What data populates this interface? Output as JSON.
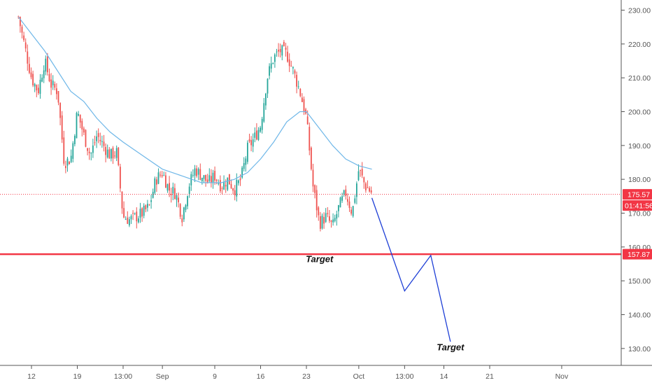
{
  "chart_data": {
    "type": "candlestick",
    "title": "",
    "ylim": [
      125,
      233
    ],
    "y_ticks": [
      "130.00",
      "140.00",
      "150.00",
      "160.00",
      "170.00",
      "180.00",
      "190.00",
      "200.00",
      "210.00",
      "220.00",
      "230.00"
    ],
    "x_ticks": [
      "12",
      "19",
      "13:00",
      "Sep",
      "9",
      "16",
      "23",
      "Oct",
      "13:00",
      "14",
      "21",
      "Nov"
    ],
    "colors": {
      "up": "#26a69a",
      "down": "#ef5350",
      "ma": "#6fb7e8",
      "support": "#f23645",
      "projection": "#1e3fd6",
      "axis": "#555555"
    },
    "grid": false,
    "current_price": {
      "value": 175.57,
      "label": "175.57",
      "countdown": "01:41:56"
    },
    "support_level": {
      "value": 157.87,
      "label": "157.87"
    },
    "annotations": [
      {
        "text": "Target",
        "x": "~25 Sep",
        "y": 155.5
      },
      {
        "text": "Target",
        "x": "~15 Oct",
        "y": 129.5
      }
    ],
    "projection": [
      {
        "x": "~3 Oct",
        "y": 174.5
      },
      {
        "x": "~8 Oct",
        "y": 147
      },
      {
        "x": "~12 Oct",
        "y": 157.5
      },
      {
        "x": "~15 Oct",
        "y": 132
      }
    ],
    "price_path": [
      {
        "x": "~10 Aug",
        "y": 228
      },
      {
        "x": "~11 Aug",
        "y": 219
      },
      {
        "x": "~12 Aug",
        "y": 210
      },
      {
        "x": "~13 Aug",
        "y": 206
      },
      {
        "x": "~14 Aug",
        "y": 215
      },
      {
        "x": "~15 Aug",
        "y": 208
      },
      {
        "x": "~16 Aug",
        "y": 206
      },
      {
        "x": "~17 Aug",
        "y": 185
      },
      {
        "x": "~18 Aug",
        "y": 186
      },
      {
        "x": "~19 Aug",
        "y": 200
      },
      {
        "x": "~20 Aug",
        "y": 193
      },
      {
        "x": "~21 Aug",
        "y": 187
      },
      {
        "x": "~22 Aug",
        "y": 193
      },
      {
        "x": "~23 Aug",
        "y": 190
      },
      {
        "x": "~24 Aug",
        "y": 187
      },
      {
        "x": "~25 Aug",
        "y": 188
      },
      {
        "x": "~26 Aug",
        "y": 169
      },
      {
        "x": "~27 Aug",
        "y": 168
      },
      {
        "x": "~28 Aug",
        "y": 169
      },
      {
        "x": "~29 Aug",
        "y": 170
      },
      {
        "x": "~30 Aug",
        "y": 172
      },
      {
        "x": "~31 Aug",
        "y": 180
      },
      {
        "x": "~1 Sep",
        "y": 182
      },
      {
        "x": "~2 Sep",
        "y": 177
      },
      {
        "x": "~3 Sep",
        "y": 176
      },
      {
        "x": "~4 Sep",
        "y": 169
      },
      {
        "x": "~5 Sep",
        "y": 178
      },
      {
        "x": "~6 Sep",
        "y": 183
      },
      {
        "x": "~7 Sep",
        "y": 181
      },
      {
        "x": "~8 Sep",
        "y": 179
      },
      {
        "x": "~9 Sep",
        "y": 181
      },
      {
        "x": "~10 Sep",
        "y": 178
      },
      {
        "x": "~11 Sep",
        "y": 180
      },
      {
        "x": "~12 Sep",
        "y": 177
      },
      {
        "x": "~13 Sep",
        "y": 180
      },
      {
        "x": "~14 Sep",
        "y": 189
      },
      {
        "x": "~15 Sep",
        "y": 192
      },
      {
        "x": "~16 Sep",
        "y": 196
      },
      {
        "x": "~17 Sep",
        "y": 210
      },
      {
        "x": "~18 Sep",
        "y": 216
      },
      {
        "x": "~19 Sep",
        "y": 218
      },
      {
        "x": "~20 Sep",
        "y": 217
      },
      {
        "x": "~21 Sep",
        "y": 212
      },
      {
        "x": "~22 Sep",
        "y": 206
      },
      {
        "x": "~23 Sep",
        "y": 198
      },
      {
        "x": "~24 Sep",
        "y": 178
      },
      {
        "x": "~25 Sep",
        "y": 167
      },
      {
        "x": "~26 Sep",
        "y": 169
      },
      {
        "x": "~27 Sep",
        "y": 166
      },
      {
        "x": "~28 Sep",
        "y": 172
      },
      {
        "x": "~29 Sep",
        "y": 176
      },
      {
        "x": "~30 Sep",
        "y": 170
      },
      {
        "x": "~1 Oct",
        "y": 183
      },
      {
        "x": "~2 Oct",
        "y": 178
      },
      {
        "x": "~3 Oct",
        "y": 176
      }
    ],
    "ma_path": [
      {
        "x": "~10 Aug",
        "y": 228
      },
      {
        "x": "~12 Aug",
        "y": 223
      },
      {
        "x": "~14 Aug",
        "y": 218
      },
      {
        "x": "~16 Aug",
        "y": 212
      },
      {
        "x": "~18 Aug",
        "y": 206
      },
      {
        "x": "~20 Aug",
        "y": 203
      },
      {
        "x": "~22 Aug",
        "y": 198
      },
      {
        "x": "~24 Aug",
        "y": 194
      },
      {
        "x": "~26 Aug",
        "y": 191
      },
      {
        "x": "~29 Aug",
        "y": 187
      },
      {
        "x": "~1 Sep",
        "y": 183
      },
      {
        "x": "~4 Sep",
        "y": 181
      },
      {
        "x": "~7 Sep",
        "y": 179
      },
      {
        "x": "~10 Sep",
        "y": 179
      },
      {
        "x": "~12 Sep",
        "y": 180
      },
      {
        "x": "~14 Sep",
        "y": 182
      },
      {
        "x": "~16 Sep",
        "y": 186
      },
      {
        "x": "~18 Sep",
        "y": 191
      },
      {
        "x": "~20 Sep",
        "y": 197
      },
      {
        "x": "~22 Sep",
        "y": 200
      },
      {
        "x": "~23 Sep",
        "y": 200
      },
      {
        "x": "~25 Sep",
        "y": 195
      },
      {
        "x": "~27 Sep",
        "y": 190
      },
      {
        "x": "~29 Sep",
        "y": 186
      },
      {
        "x": "~1 Oct",
        "y": 184
      },
      {
        "x": "~3 Oct",
        "y": 183
      }
    ]
  }
}
